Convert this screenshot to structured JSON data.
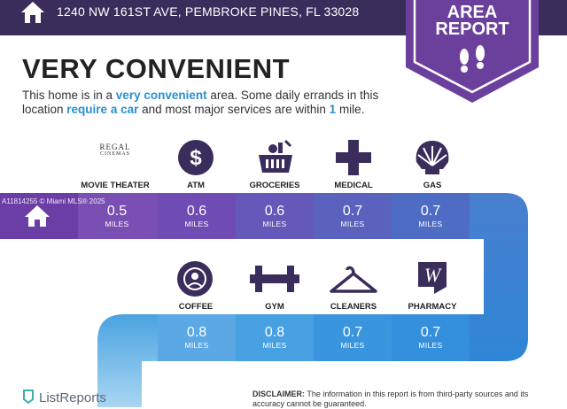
{
  "header": {
    "address": "1240 NW 161ST AVE, PEMBROKE PINES, FL 33028",
    "badge_line1": "AREA",
    "badge_line2": "REPORT"
  },
  "headline": "VERY CONVENIENT",
  "description": {
    "p1": "This home is in a ",
    "h1": "very convenient",
    "p2": " area. Some daily errands in this location ",
    "h2": "require a car",
    "p3": " and most major services are within ",
    "h3": "1",
    "p4": " mile."
  },
  "brand_regal": {
    "line1": "REGAL",
    "line2": "CINEMAS"
  },
  "row1": [
    {
      "label": "MOVIE THEATER",
      "distance": "0.5",
      "unit": "MILES",
      "icon": "regal-cinemas-logo"
    },
    {
      "label": "ATM",
      "distance": "0.6",
      "unit": "MILES",
      "icon": "dollar-icon"
    },
    {
      "label": "GROCERIES",
      "distance": "0.6",
      "unit": "MILES",
      "icon": "basket-icon"
    },
    {
      "label": "MEDICAL",
      "distance": "0.7",
      "unit": "MILES",
      "icon": "medical-cross-icon"
    },
    {
      "label": "GAS",
      "distance": "0.7",
      "unit": "MILES",
      "icon": "shell-icon"
    }
  ],
  "row2": [
    {
      "label": "COFFEE",
      "distance": "0.8",
      "unit": "MILES",
      "icon": "starbucks-icon"
    },
    {
      "label": "GYM",
      "distance": "0.8",
      "unit": "MILES",
      "icon": "dumbbell-icon"
    },
    {
      "label": "CLEANERS",
      "distance": "0.7",
      "unit": "MILES",
      "icon": "hanger-icon"
    },
    {
      "label": "PHARMACY",
      "distance": "0.7",
      "unit": "MILES",
      "icon": "walgreens-icon"
    }
  ],
  "watermark": "A11814255 © Miami MLS® 2025",
  "footer": {
    "logo": "ListReports",
    "disclaimer_label": "DISCLAIMER:",
    "disclaimer_text": " The information in this report is from third-party sources and its accuracy cannot be guaranteed."
  },
  "colors": {
    "header": "#3a2d5c",
    "badge": "#6b3f9c",
    "purple": "#7a4fb3",
    "blue": "#2f86d6",
    "light_blue": "#74b8e8"
  }
}
